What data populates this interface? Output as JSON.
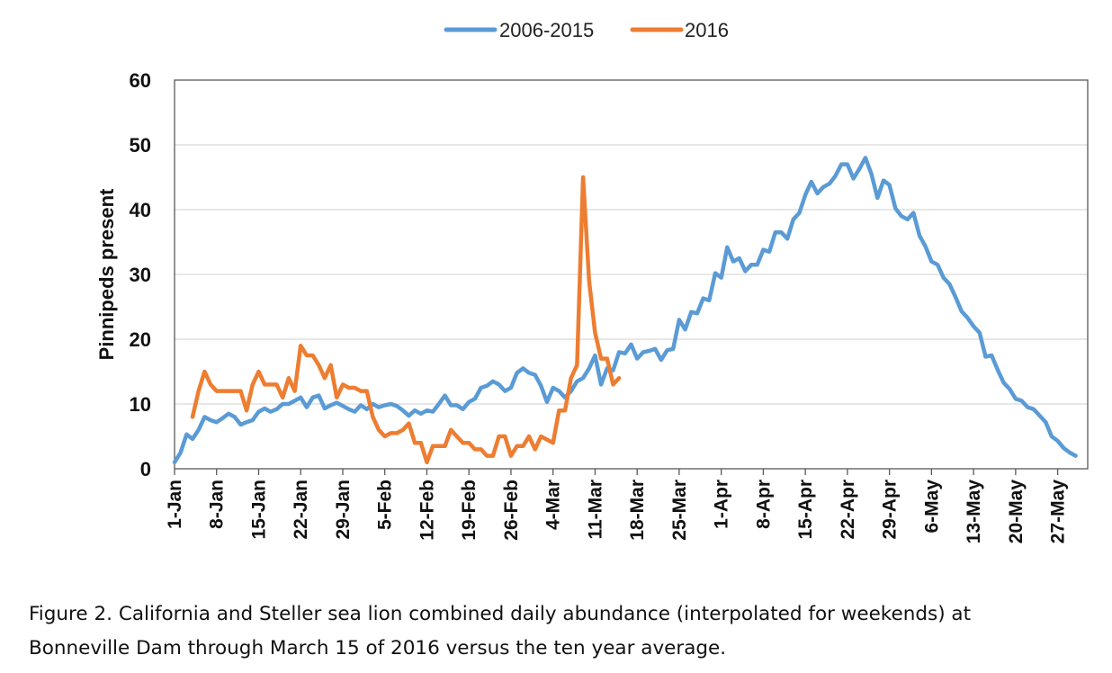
{
  "caption": {
    "line1": "Figure 2.  California and Steller sea lion combined daily abundance (interpolated for weekends) at",
    "line2": "Bonneville Dam through March 15 of 2016 versus the ten year average."
  },
  "chart_data": {
    "type": "line",
    "title": "",
    "xlabel": "",
    "ylabel": "Pinnipeds present",
    "ylim": [
      0,
      60
    ],
    "yticks": [
      "0",
      "10",
      "20",
      "30",
      "40",
      "50",
      "60"
    ],
    "xlim": [
      "2016-01-01",
      "2016-06-01"
    ],
    "xticks": [
      {
        "date": "2016-01-01",
        "label": "1-Jan"
      },
      {
        "date": "2016-01-08",
        "label": "8-Jan"
      },
      {
        "date": "2016-01-15",
        "label": "15-Jan"
      },
      {
        "date": "2016-01-22",
        "label": "22-Jan"
      },
      {
        "date": "2016-01-29",
        "label": "29-Jan"
      },
      {
        "date": "2016-02-05",
        "label": "5-Feb"
      },
      {
        "date": "2016-02-12",
        "label": "12-Feb"
      },
      {
        "date": "2016-02-19",
        "label": "19-Feb"
      },
      {
        "date": "2016-02-26",
        "label": "26-Feb"
      },
      {
        "date": "2016-03-04",
        "label": "4-Mar"
      },
      {
        "date": "2016-03-11",
        "label": "11-Mar"
      },
      {
        "date": "2016-03-18",
        "label": "18-Mar"
      },
      {
        "date": "2016-03-25",
        "label": "25-Mar"
      },
      {
        "date": "2016-04-01",
        "label": "1-Apr"
      },
      {
        "date": "2016-04-08",
        "label": "8-Apr"
      },
      {
        "date": "2016-04-15",
        "label": "15-Apr"
      },
      {
        "date": "2016-04-22",
        "label": "22-Apr"
      },
      {
        "date": "2016-04-29",
        "label": "29-Apr"
      },
      {
        "date": "2016-05-06",
        "label": "6-May"
      },
      {
        "date": "2016-05-13",
        "label": "13-May"
      },
      {
        "date": "2016-05-20",
        "label": "20-May"
      },
      {
        "date": "2016-05-27",
        "label": "27-May"
      }
    ],
    "grid": "horizontal",
    "legend_position": "top-center",
    "series": [
      {
        "name": "2006-2015",
        "color": "#5B9BD5",
        "points": [
          [
            "2016-01-01",
            1
          ],
          [
            "2016-01-02",
            2.5
          ],
          [
            "2016-01-03",
            5.3
          ],
          [
            "2016-01-04",
            4.6
          ],
          [
            "2016-01-05",
            6
          ],
          [
            "2016-01-06",
            8
          ],
          [
            "2016-01-07",
            7.5
          ],
          [
            "2016-01-08",
            7.2
          ],
          [
            "2016-01-09",
            7.8
          ],
          [
            "2016-01-10",
            8.5
          ],
          [
            "2016-01-11",
            8
          ],
          [
            "2016-01-12",
            6.8
          ],
          [
            "2016-01-13",
            7.2
          ],
          [
            "2016-01-14",
            7.5
          ],
          [
            "2016-01-15",
            8.8
          ],
          [
            "2016-01-16",
            9.3
          ],
          [
            "2016-01-17",
            8.8
          ],
          [
            "2016-01-18",
            9.2
          ],
          [
            "2016-01-19",
            10
          ],
          [
            "2016-01-20",
            10
          ],
          [
            "2016-01-21",
            10.5
          ],
          [
            "2016-01-22",
            11
          ],
          [
            "2016-01-23",
            9.5
          ],
          [
            "2016-01-24",
            11
          ],
          [
            "2016-01-25",
            11.3
          ],
          [
            "2016-01-26",
            9.3
          ],
          [
            "2016-01-27",
            9.8
          ],
          [
            "2016-01-28",
            10.2
          ],
          [
            "2016-01-29",
            9.7
          ],
          [
            "2016-01-30",
            9.2
          ],
          [
            "2016-01-31",
            8.8
          ],
          [
            "2016-02-01",
            9.8
          ],
          [
            "2016-02-02",
            9.2
          ],
          [
            "2016-02-03",
            10
          ],
          [
            "2016-02-04",
            9.5
          ],
          [
            "2016-02-05",
            9.8
          ],
          [
            "2016-02-06",
            10
          ],
          [
            "2016-02-07",
            9.7
          ],
          [
            "2016-02-08",
            9
          ],
          [
            "2016-02-09",
            8.2
          ],
          [
            "2016-02-10",
            9
          ],
          [
            "2016-02-11",
            8.5
          ],
          [
            "2016-02-12",
            9
          ],
          [
            "2016-02-13",
            8.8
          ],
          [
            "2016-02-14",
            10
          ],
          [
            "2016-02-15",
            11.3
          ],
          [
            "2016-02-16",
            9.8
          ],
          [
            "2016-02-17",
            9.8
          ],
          [
            "2016-02-18",
            9.2
          ],
          [
            "2016-02-19",
            10.3
          ],
          [
            "2016-02-20",
            10.8
          ],
          [
            "2016-02-21",
            12.5
          ],
          [
            "2016-02-22",
            12.8
          ],
          [
            "2016-02-23",
            13.5
          ],
          [
            "2016-02-24",
            13
          ],
          [
            "2016-02-25",
            12
          ],
          [
            "2016-02-26",
            12.5
          ],
          [
            "2016-02-27",
            14.8
          ],
          [
            "2016-02-28",
            15.5
          ],
          [
            "2016-02-29",
            14.8
          ],
          [
            "2016-03-01",
            14.5
          ],
          [
            "2016-03-02",
            12.8
          ],
          [
            "2016-03-03",
            10.3
          ],
          [
            "2016-03-04",
            12.5
          ],
          [
            "2016-03-05",
            12
          ],
          [
            "2016-03-06",
            11
          ],
          [
            "2016-03-07",
            12
          ],
          [
            "2016-03-08",
            13.5
          ],
          [
            "2016-03-09",
            14
          ],
          [
            "2016-03-10",
            15.5
          ],
          [
            "2016-03-11",
            17.5
          ],
          [
            "2016-03-12",
            13
          ],
          [
            "2016-03-13",
            15.5
          ],
          [
            "2016-03-14",
            15.2
          ],
          [
            "2016-03-15",
            18
          ],
          [
            "2016-03-16",
            17.8
          ],
          [
            "2016-03-17",
            19.2
          ],
          [
            "2016-03-18",
            17
          ],
          [
            "2016-03-19",
            18
          ],
          [
            "2016-03-20",
            18.2
          ],
          [
            "2016-03-21",
            18.5
          ],
          [
            "2016-03-22",
            16.8
          ],
          [
            "2016-03-23",
            18.3
          ],
          [
            "2016-03-24",
            18.5
          ],
          [
            "2016-03-25",
            23
          ],
          [
            "2016-03-26",
            21.5
          ],
          [
            "2016-03-27",
            24.2
          ],
          [
            "2016-03-28",
            24
          ],
          [
            "2016-03-29",
            26.3
          ],
          [
            "2016-03-30",
            26
          ],
          [
            "2016-03-31",
            30.2
          ],
          [
            "2016-04-01",
            29.5
          ],
          [
            "2016-04-02",
            34.2
          ],
          [
            "2016-04-03",
            32
          ],
          [
            "2016-04-04",
            32.5
          ],
          [
            "2016-04-05",
            30.5
          ],
          [
            "2016-04-06",
            31.5
          ],
          [
            "2016-04-07",
            31.5
          ],
          [
            "2016-04-08",
            33.8
          ],
          [
            "2016-04-09",
            33.5
          ],
          [
            "2016-04-10",
            36.5
          ],
          [
            "2016-04-11",
            36.5
          ],
          [
            "2016-04-12",
            35.5
          ],
          [
            "2016-04-13",
            38.5
          ],
          [
            "2016-04-14",
            39.5
          ],
          [
            "2016-04-15",
            42.3
          ],
          [
            "2016-04-16",
            44.3
          ],
          [
            "2016-04-17",
            42.5
          ],
          [
            "2016-04-18",
            43.5
          ],
          [
            "2016-04-19",
            44
          ],
          [
            "2016-04-20",
            45.2
          ],
          [
            "2016-04-21",
            47
          ],
          [
            "2016-04-22",
            47
          ],
          [
            "2016-04-23",
            44.8
          ],
          [
            "2016-04-24",
            46.3
          ],
          [
            "2016-04-25",
            48
          ],
          [
            "2016-04-26",
            45.5
          ],
          [
            "2016-04-27",
            41.8
          ],
          [
            "2016-04-28",
            44.5
          ],
          [
            "2016-04-29",
            43.8
          ],
          [
            "2016-04-30",
            40.2
          ],
          [
            "2016-05-01",
            39
          ],
          [
            "2016-05-02",
            38.5
          ],
          [
            "2016-05-03",
            39.5
          ],
          [
            "2016-05-04",
            36
          ],
          [
            "2016-05-05",
            34.3
          ],
          [
            "2016-05-06",
            32
          ],
          [
            "2016-05-07",
            31.5
          ],
          [
            "2016-05-08",
            29.5
          ],
          [
            "2016-05-09",
            28.5
          ],
          [
            "2016-05-10",
            26.5
          ],
          [
            "2016-05-11",
            24.3
          ],
          [
            "2016-05-12",
            23.3
          ],
          [
            "2016-05-13",
            22
          ],
          [
            "2016-05-14",
            21
          ],
          [
            "2016-05-15",
            17.3
          ],
          [
            "2016-05-16",
            17.5
          ],
          [
            "2016-05-17",
            15.3
          ],
          [
            "2016-05-18",
            13.3
          ],
          [
            "2016-05-19",
            12.3
          ],
          [
            "2016-05-20",
            10.8
          ],
          [
            "2016-05-21",
            10.5
          ],
          [
            "2016-05-22",
            9.5
          ],
          [
            "2016-05-23",
            9.2
          ],
          [
            "2016-05-24",
            8.2
          ],
          [
            "2016-05-25",
            7.2
          ],
          [
            "2016-05-26",
            5
          ],
          [
            "2016-05-27",
            4.3
          ],
          [
            "2016-05-28",
            3.2
          ],
          [
            "2016-05-29",
            2.5
          ],
          [
            "2016-05-30",
            2
          ]
        ]
      },
      {
        "name": "2016",
        "color": "#ED7D31",
        "points": [
          [
            "2016-01-04",
            8
          ],
          [
            "2016-01-05",
            12
          ],
          [
            "2016-01-06",
            15
          ],
          [
            "2016-01-07",
            13
          ],
          [
            "2016-01-08",
            12
          ],
          [
            "2016-01-09",
            12
          ],
          [
            "2016-01-10",
            12
          ],
          [
            "2016-01-11",
            12
          ],
          [
            "2016-01-12",
            12
          ],
          [
            "2016-01-13",
            9
          ],
          [
            "2016-01-14",
            13
          ],
          [
            "2016-01-15",
            15
          ],
          [
            "2016-01-16",
            13
          ],
          [
            "2016-01-17",
            13
          ],
          [
            "2016-01-18",
            13
          ],
          [
            "2016-01-19",
            11
          ],
          [
            "2016-01-20",
            14
          ],
          [
            "2016-01-21",
            12
          ],
          [
            "2016-01-22",
            19
          ],
          [
            "2016-01-23",
            17.5
          ],
          [
            "2016-01-24",
            17.5
          ],
          [
            "2016-01-25",
            16
          ],
          [
            "2016-01-26",
            14
          ],
          [
            "2016-01-27",
            16
          ],
          [
            "2016-01-28",
            11
          ],
          [
            "2016-01-29",
            13
          ],
          [
            "2016-01-30",
            12.5
          ],
          [
            "2016-01-31",
            12.5
          ],
          [
            "2016-02-01",
            12
          ],
          [
            "2016-02-02",
            12
          ],
          [
            "2016-02-03",
            8
          ],
          [
            "2016-02-04",
            6
          ],
          [
            "2016-02-05",
            5
          ],
          [
            "2016-02-06",
            5.5
          ],
          [
            "2016-02-07",
            5.5
          ],
          [
            "2016-02-08",
            6
          ],
          [
            "2016-02-09",
            7
          ],
          [
            "2016-02-10",
            4
          ],
          [
            "2016-02-11",
            4
          ],
          [
            "2016-02-12",
            1
          ],
          [
            "2016-02-13",
            3.5
          ],
          [
            "2016-02-14",
            3.5
          ],
          [
            "2016-02-15",
            3.5
          ],
          [
            "2016-02-16",
            6
          ],
          [
            "2016-02-17",
            5
          ],
          [
            "2016-02-18",
            4
          ],
          [
            "2016-02-19",
            4
          ],
          [
            "2016-02-20",
            3
          ],
          [
            "2016-02-21",
            3
          ],
          [
            "2016-02-22",
            2
          ],
          [
            "2016-02-23",
            2
          ],
          [
            "2016-02-24",
            5
          ],
          [
            "2016-02-25",
            5
          ],
          [
            "2016-02-26",
            2
          ],
          [
            "2016-02-27",
            3.5
          ],
          [
            "2016-02-28",
            3.5
          ],
          [
            "2016-02-29",
            5
          ],
          [
            "2016-03-01",
            3
          ],
          [
            "2016-03-02",
            5
          ],
          [
            "2016-03-03",
            4.5
          ],
          [
            "2016-03-04",
            4
          ],
          [
            "2016-03-05",
            9
          ],
          [
            "2016-03-06",
            9
          ],
          [
            "2016-03-07",
            14
          ],
          [
            "2016-03-08",
            16
          ],
          [
            "2016-03-09",
            45
          ],
          [
            "2016-03-10",
            29
          ],
          [
            "2016-03-11",
            21
          ],
          [
            "2016-03-12",
            17
          ],
          [
            "2016-03-13",
            17
          ],
          [
            "2016-03-14",
            13
          ],
          [
            "2016-03-15",
            14
          ]
        ]
      }
    ]
  }
}
